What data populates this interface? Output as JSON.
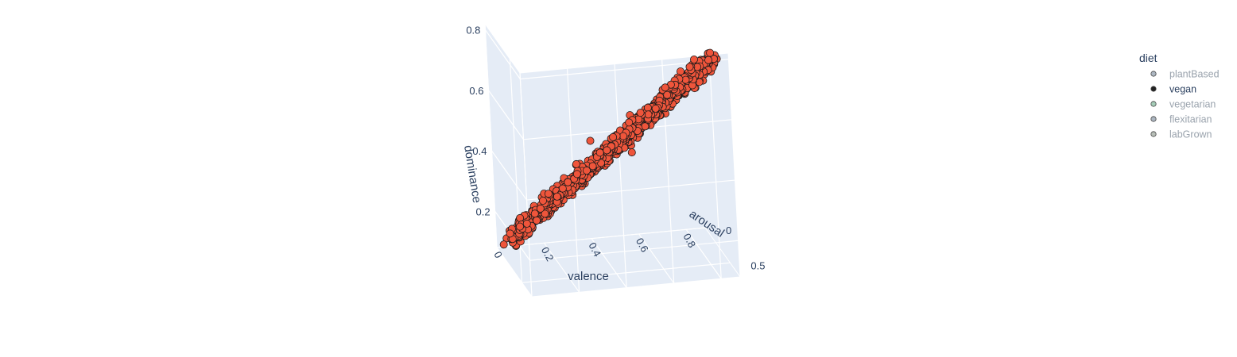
{
  "chart_data": {
    "type": "scatter3d",
    "title": "",
    "axes": {
      "x": {
        "label": "valence",
        "ticks": [
          "0",
          "0.2",
          "0.4",
          "0.6",
          "0.8"
        ],
        "range": [
          0,
          0.88
        ]
      },
      "y": {
        "label": "arousal",
        "ticks": [
          "0",
          "0.5"
        ],
        "range": [
          0,
          0.7
        ]
      },
      "z": {
        "label": "dominance",
        "ticks": [
          "0.2",
          "0.4",
          "0.6",
          "0.8"
        ],
        "range": [
          0.08,
          0.82
        ]
      }
    },
    "grid": true,
    "legend": {
      "title": "diet",
      "placement": "top-right",
      "items": [
        {
          "name": "plantBased",
          "color": "#8a99a8",
          "active": false
        },
        {
          "name": "vegan",
          "color": "#222222",
          "active": true
        },
        {
          "name": "vegetarian",
          "color": "#7fb89a",
          "active": false
        },
        {
          "name": "flexitarian",
          "color": "#8a99a8",
          "active": false
        },
        {
          "name": "labGrown",
          "color": "#9aa49a",
          "active": false
        }
      ]
    },
    "series": [
      {
        "name": "vegan",
        "marker_color": "#ef553b",
        "marker_outline": "#1a1a1a",
        "note_points": [
          {
            "valence": 0.02,
            "arousal": 0.05,
            "dominance": 0.1
          },
          {
            "valence": 0.1,
            "arousal": 0.15,
            "dominance": 0.18
          },
          {
            "valence": 0.2,
            "arousal": 0.22,
            "dominance": 0.27
          },
          {
            "valence": 0.3,
            "arousal": 0.3,
            "dominance": 0.35
          },
          {
            "valence": 0.4,
            "arousal": 0.35,
            "dominance": 0.45
          },
          {
            "valence": 0.5,
            "arousal": 0.4,
            "dominance": 0.53
          },
          {
            "valence": 0.6,
            "arousal": 0.45,
            "dominance": 0.6
          },
          {
            "valence": 0.7,
            "arousal": 0.5,
            "dominance": 0.68
          },
          {
            "valence": 0.8,
            "arousal": 0.55,
            "dominance": 0.75
          },
          {
            "valence": 0.85,
            "arousal": 0.6,
            "dominance": 0.78
          },
          {
            "valence": 0.3,
            "arousal": 0.6,
            "dominance": 0.55
          },
          {
            "valence": 0.55,
            "arousal": 0.2,
            "dominance": 0.4
          }
        ]
      }
    ],
    "colors": {
      "scene_background": "#e5ecf6",
      "grid": "#ffffff",
      "text": "#2a3f5f"
    }
  }
}
